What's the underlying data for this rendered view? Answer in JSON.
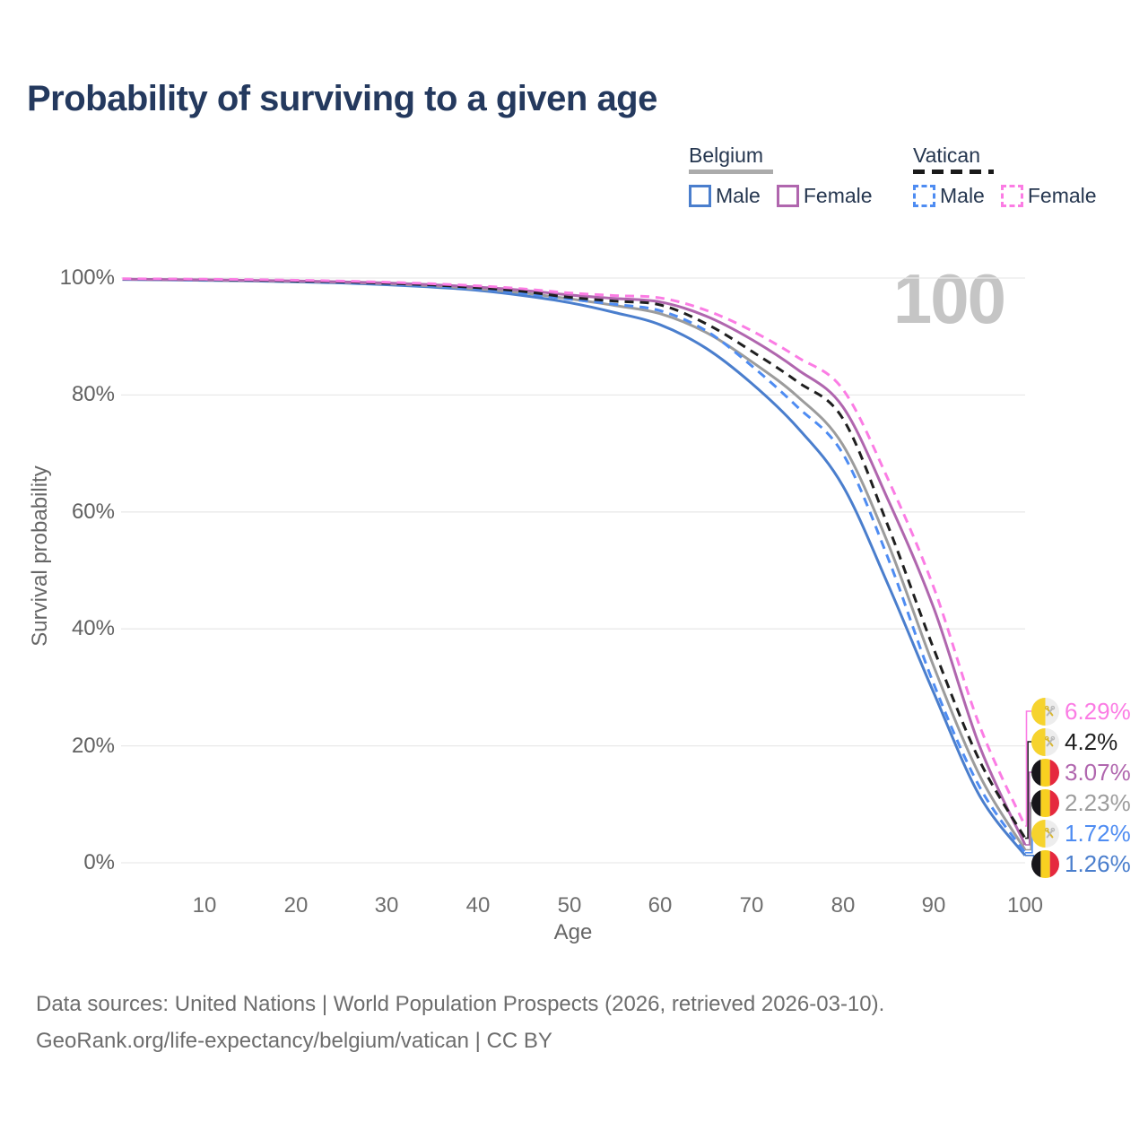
{
  "title": "Probability of surviving to a given age",
  "watermark": "100",
  "legend": {
    "groups": [
      {
        "label": "Belgium",
        "line_style": "solid",
        "underline_color": "#ababab",
        "items": [
          {
            "label": "Male",
            "color": "#4a7ecd",
            "dash": false
          },
          {
            "label": "Female",
            "color": "#b066ae",
            "dash": false
          }
        ]
      },
      {
        "label": "Vatican",
        "line_style": "dashed",
        "underline_color": "#1a1a1a",
        "items": [
          {
            "label": "Male",
            "color": "#4e8cf2",
            "dash": true
          },
          {
            "label": "Female",
            "color": "#fb7ce4",
            "dash": true
          }
        ]
      }
    ]
  },
  "axes": {
    "y": {
      "label": "Survival probability",
      "ticks": [
        "0%",
        "20%",
        "40%",
        "60%",
        "80%",
        "100%"
      ]
    },
    "x": {
      "label": "Age",
      "ticks": [
        10,
        20,
        30,
        40,
        50,
        60,
        70,
        80,
        90,
        100
      ]
    }
  },
  "chart_data": {
    "type": "line",
    "title": "Probability of surviving to a given age",
    "xlabel": "Age",
    "ylabel": "Survival probability",
    "xlim": [
      1,
      100
    ],
    "ylim": [
      0,
      100
    ],
    "grid": true,
    "legend_position": "top-right",
    "age_watermark": 100,
    "x": [
      1,
      5,
      10,
      15,
      20,
      25,
      30,
      35,
      40,
      45,
      50,
      55,
      60,
      65,
      70,
      75,
      80,
      85,
      90,
      95,
      100
    ],
    "series": [
      {
        "name": "Belgium Male",
        "country": "Belgium",
        "sex": "Male",
        "color": "#4a7ecd",
        "dash": false,
        "row": 5,
        "end_label": "1.26%",
        "values": [
          99.75,
          99.7,
          99.6,
          99.5,
          99.35,
          99.15,
          98.85,
          98.45,
          97.9,
          97.0,
          95.8,
          94.1,
          92.0,
          88.0,
          82.0,
          74.5,
          64.5,
          47.5,
          29.0,
          11.5,
          1.26
        ]
      },
      {
        "name": "Belgium Both sexes",
        "country": "Belgium",
        "sex": "Both",
        "color": "#9c9c9c",
        "dash": false,
        "row": 3,
        "end_label": "2.23%",
        "values": [
          99.78,
          99.73,
          99.65,
          99.55,
          99.42,
          99.25,
          99.0,
          98.65,
          98.15,
          97.45,
          96.45,
          95.3,
          93.9,
          90.7,
          85.7,
          79.8,
          71.5,
          54.5,
          33.5,
          15.0,
          2.23
        ]
      },
      {
        "name": "Belgium Female",
        "country": "Belgium",
        "sex": "Female",
        "color": "#b066ae",
        "dash": false,
        "row": 2,
        "end_label": "3.07%",
        "values": [
          99.8,
          99.75,
          99.7,
          99.6,
          99.5,
          99.35,
          99.15,
          98.85,
          98.45,
          97.9,
          97.1,
          96.5,
          95.9,
          93.5,
          89.5,
          84.4,
          78.0,
          62.0,
          43.5,
          20.0,
          3.07
        ]
      },
      {
        "name": "Vatican Male",
        "country": "Vatican",
        "sex": "Male",
        "color": "#4e8cf2",
        "dash": true,
        "row": 4,
        "end_label": "1.72%",
        "values": [
          99.8,
          99.75,
          99.7,
          99.6,
          99.45,
          99.25,
          99.0,
          98.65,
          98.15,
          97.4,
          96.4,
          95.5,
          94.4,
          91.0,
          85.0,
          78.0,
          70.0,
          52.0,
          30.5,
          13.0,
          1.72
        ]
      },
      {
        "name": "Vatican Both sexes",
        "country": "Vatican",
        "sex": "Both",
        "color": "#1f1f1f",
        "dash": true,
        "row": 1,
        "end_label": "4.2%",
        "values": [
          99.85,
          99.8,
          99.75,
          99.65,
          99.5,
          99.35,
          99.1,
          98.8,
          98.35,
          97.7,
          96.7,
          96.05,
          95.4,
          92.2,
          87.5,
          82.3,
          76.0,
          57.5,
          36.5,
          17.5,
          4.2
        ]
      },
      {
        "name": "Vatican Female",
        "country": "Vatican",
        "sex": "Female",
        "color": "#fb7ce4",
        "dash": true,
        "row": 0,
        "end_label": "6.29%",
        "values": [
          99.88,
          99.84,
          99.8,
          99.72,
          99.62,
          99.48,
          99.28,
          99.02,
          98.65,
          98.15,
          97.45,
          97.0,
          96.6,
          94.5,
          91.0,
          86.5,
          81.0,
          65.5,
          47.0,
          23.5,
          6.29
        ]
      }
    ]
  },
  "footer": {
    "line1": "Data sources: United Nations | World Population Prospects (2026, retrieved 2026-03-10).",
    "line2": "GeoRank.org/life-expectancy/belgium/vatican | CC BY"
  }
}
